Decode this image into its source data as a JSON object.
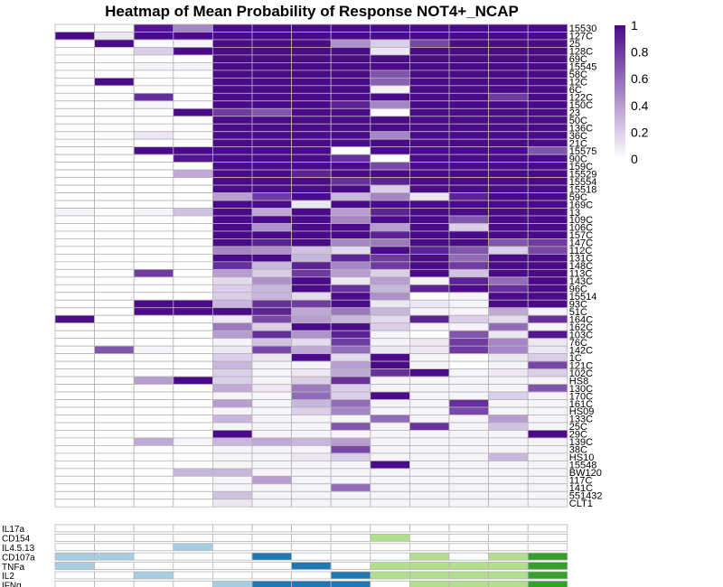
{
  "chart_data": {
    "type": "heatmap",
    "title": "Heatmap of Mean Probability of Response NOT4+_NCAP",
    "xlabel": "",
    "ylabel": "",
    "color_scale": {
      "min": 0,
      "max": 1,
      "low_color": "#ffffff",
      "high_color": "#4b0a8a",
      "ticks": [
        "1",
        "0.8",
        "0.6",
        "0.4",
        "0.2",
        "0"
      ]
    },
    "rows": [
      "15530",
      "127C",
      "25",
      "128C",
      "69C",
      "15545",
      "58C",
      "12C",
      "6C",
      "122C",
      "150C",
      "23",
      "50C",
      "136C",
      "36C",
      "21C",
      "15575",
      "90C",
      "159C",
      "15529",
      "15554",
      "15518",
      "59C",
      "169C",
      "13",
      "109C",
      "106C",
      "157C",
      "147C",
      "112C",
      "131C",
      "148C",
      "113C",
      "143C",
      "96C",
      "15514",
      "93C",
      "51C",
      "164C",
      "162C",
      "103C",
      "76C",
      "142C",
      "1C",
      "121C",
      "102C",
      "HS8",
      "130C",
      "170C",
      "161C",
      "HS09",
      "133C",
      "25C",
      "29C",
      "139C",
      "38C",
      "HS10",
      "15548",
      "BW120",
      "117C",
      "141C",
      "551432",
      "CLT1"
    ],
    "values": [
      [
        0,
        0,
        0.95,
        0.5,
        1,
        1,
        1,
        1,
        1,
        1,
        1,
        1,
        1
      ],
      [
        1,
        0.1,
        1,
        1,
        1,
        1,
        1,
        1,
        1,
        1,
        1,
        1,
        1
      ],
      [
        0,
        1,
        0.02,
        0.05,
        1,
        1,
        1,
        0.45,
        0.2,
        0.75,
        1,
        1,
        1
      ],
      [
        0,
        0,
        0.2,
        1,
        1,
        1,
        1,
        1,
        0.1,
        1,
        1,
        1,
        1
      ],
      [
        0,
        0,
        0,
        0,
        1,
        1,
        1,
        1,
        1,
        1,
        1,
        1,
        1
      ],
      [
        0,
        0,
        0.05,
        0.05,
        1,
        1,
        1,
        1,
        1,
        1,
        1,
        1,
        1
      ],
      [
        0,
        0,
        0,
        0,
        1,
        1,
        1,
        1,
        0.7,
        1,
        1,
        1,
        1
      ],
      [
        0,
        1,
        0,
        0,
        1,
        1,
        1,
        1,
        0.65,
        1,
        1,
        1,
        1
      ],
      [
        0,
        0,
        0,
        0,
        1,
        1,
        1,
        1,
        0.05,
        1,
        1,
        1,
        1
      ],
      [
        0,
        0,
        0.85,
        0,
        1,
        1,
        1,
        1,
        1,
        1,
        1,
        0.8,
        1
      ],
      [
        0,
        0,
        0.05,
        0,
        1,
        1,
        1,
        0.9,
        0.5,
        1,
        1,
        1,
        1
      ],
      [
        0,
        0,
        0,
        1,
        0.8,
        0.7,
        1,
        1,
        0,
        1,
        1,
        1,
        1
      ],
      [
        0,
        0,
        0,
        0,
        1,
        1,
        1,
        1,
        1,
        1,
        1,
        1,
        1
      ],
      [
        0,
        0,
        0,
        0,
        1,
        1,
        1,
        1,
        1,
        1,
        1,
        1,
        1
      ],
      [
        0,
        0,
        0.1,
        0,
        1,
        1,
        1,
        1,
        0.5,
        1,
        1,
        1,
        1
      ],
      [
        0,
        0,
        0,
        0,
        1,
        1,
        1,
        1,
        1,
        1,
        1,
        1,
        1
      ],
      [
        0,
        0,
        1,
        1,
        1,
        1,
        1,
        0,
        1,
        1,
        1,
        1,
        0.7
      ],
      [
        0,
        0,
        0,
        0.95,
        1,
        1,
        1,
        0.85,
        0,
        1,
        1,
        1,
        1
      ],
      [
        0,
        0,
        0,
        0,
        1,
        1,
        1,
        1,
        0.75,
        1,
        1,
        1,
        1
      ],
      [
        0,
        0,
        0,
        0.35,
        1,
        1,
        0.9,
        1,
        1,
        1,
        1,
        1,
        1
      ],
      [
        0,
        0,
        0,
        0,
        1,
        1,
        1,
        0.85,
        0.9,
        1,
        1,
        1,
        1
      ],
      [
        0,
        0,
        0,
        0,
        1,
        1,
        1,
        1,
        0.2,
        1,
        1,
        1,
        1
      ],
      [
        0,
        0,
        0,
        0,
        0.4,
        0.8,
        1,
        0.3,
        0.5,
        0.1,
        0.9,
        1,
        1
      ],
      [
        0,
        0,
        0,
        0,
        1,
        1,
        0.1,
        1,
        1,
        1,
        1,
        1,
        1
      ],
      [
        0.05,
        0,
        0.05,
        0.25,
        1,
        0.35,
        1,
        0.4,
        0.9,
        1,
        1,
        1,
        1
      ],
      [
        0,
        0,
        0,
        0,
        1,
        1,
        1,
        0.5,
        1,
        1,
        0.7,
        1,
        1
      ],
      [
        0,
        0,
        0,
        0,
        1,
        0.45,
        1,
        1,
        0.4,
        1,
        0.2,
        1,
        1
      ],
      [
        0,
        0,
        0,
        0,
        1,
        1,
        1,
        1,
        0.9,
        1,
        1,
        1,
        1
      ],
      [
        0,
        0,
        0,
        0,
        1,
        0.9,
        1,
        0.5,
        0.55,
        1,
        1,
        0.7,
        0.8
      ],
      [
        0,
        0,
        0,
        0,
        0.5,
        0.45,
        0.25,
        0.15,
        1,
        0.9,
        0.7,
        0.2,
        0.75
      ],
      [
        0,
        0,
        0,
        0,
        1,
        1,
        0.3,
        0.9,
        0.8,
        1,
        0.6,
        1,
        1
      ],
      [
        0,
        0,
        0,
        0,
        0.85,
        0.3,
        0.9,
        0.5,
        0.8,
        1,
        0.8,
        1,
        1
      ],
      [
        0,
        0,
        0.8,
        0,
        0.4,
        0.2,
        0.8,
        0.4,
        0.2,
        1,
        0.25,
        1,
        1
      ],
      [
        0,
        0,
        0,
        0,
        0.15,
        0.45,
        1,
        0.1,
        0.4,
        0.05,
        0.9,
        0.6,
        1
      ],
      [
        0,
        0,
        0,
        0,
        0.2,
        0.3,
        1,
        0.85,
        0.3,
        0.9,
        1,
        0.85,
        1
      ],
      [
        0,
        0,
        0,
        0,
        0.2,
        0.3,
        0.15,
        1,
        0.45,
        0,
        0.05,
        1,
        1
      ],
      [
        0,
        0,
        1,
        1,
        0.3,
        0.85,
        0.8,
        1,
        0.1,
        0.1,
        0.05,
        1,
        1
      ],
      [
        0,
        0,
        1,
        1,
        1,
        0.9,
        0.35,
        0.55,
        0.3,
        0.05,
        0.05,
        0.35,
        0.05
      ],
      [
        1,
        0,
        0,
        0,
        0.1,
        0.75,
        0.4,
        0.3,
        0.15,
        0.9,
        0.2,
        0.15,
        0.85
      ],
      [
        0,
        0,
        0,
        0,
        0.55,
        0.2,
        1,
        1,
        0.2,
        0.05,
        0.05,
        0.6,
        0.05
      ],
      [
        0,
        0,
        0,
        0,
        0.4,
        0.85,
        0.45,
        0.9,
        0.05,
        0,
        0.7,
        0.1,
        0.95
      ],
      [
        0,
        0,
        0,
        0,
        0.05,
        0.25,
        0.15,
        0.8,
        0.05,
        0.1,
        0.8,
        0.5,
        0.1
      ],
      [
        0,
        0.7,
        0.05,
        0,
        0.1,
        0.75,
        0.35,
        0.6,
        0.1,
        0.1,
        0.8,
        0.5,
        0.1
      ],
      [
        0,
        0,
        0,
        0,
        0.2,
        0.1,
        1,
        0.15,
        1,
        0.05,
        0,
        0.1,
        0.2
      ],
      [
        0,
        0,
        0,
        0,
        0.3,
        0.05,
        0.05,
        0.4,
        1,
        0.05,
        0,
        0.05,
        0.75
      ],
      [
        0,
        0,
        0,
        0,
        0.2,
        0.05,
        0.1,
        0.35,
        0.85,
        1,
        0.05,
        0.1,
        0.2
      ],
      [
        0,
        0,
        0.4,
        1,
        0.2,
        0.05,
        0.2,
        0.85,
        0.05,
        0.05,
        0.05,
        0.05,
        0.05
      ],
      [
        0,
        0,
        0,
        0,
        0.35,
        0.1,
        0.55,
        0.2,
        0.05,
        0.05,
        0.05,
        0.05,
        0.7
      ],
      [
        0,
        0,
        0,
        0,
        0.05,
        0.05,
        0.6,
        0.2,
        1,
        0.05,
        0.05,
        0.2,
        0.05
      ],
      [
        0,
        0,
        0,
        0,
        0.4,
        0.05,
        0.3,
        0.6,
        0.05,
        0.05,
        0.85,
        0.05,
        0.05
      ],
      [
        0,
        0,
        0,
        0,
        0.05,
        0.05,
        0.2,
        0.5,
        0.05,
        0.05,
        0.75,
        0.05,
        0.05
      ],
      [
        0,
        0,
        0,
        0,
        0.3,
        0.05,
        0.05,
        0.05,
        0.6,
        0.05,
        0.05,
        0.4,
        0.05
      ],
      [
        0,
        0,
        0,
        0,
        0.05,
        0.05,
        0.05,
        0.7,
        0.05,
        0.85,
        0.05,
        0.25,
        0.05
      ],
      [
        0,
        0,
        0,
        0,
        1,
        0.05,
        0.05,
        0.05,
        0.05,
        0.05,
        0.05,
        0.05,
        1
      ],
      [
        0,
        0,
        0.35,
        0.05,
        0.3,
        0.35,
        0.3,
        0.4,
        0.05,
        0.05,
        0.05,
        0.05,
        0.05
      ],
      [
        0,
        0,
        0,
        0,
        0.05,
        0.05,
        0.05,
        0.75,
        0.05,
        0.05,
        0.05,
        0.05,
        0.05
      ],
      [
        0,
        0,
        0,
        0,
        0.05,
        0.05,
        0.1,
        0.2,
        0.05,
        0.05,
        0.05,
        0.3,
        0.05
      ],
      [
        0,
        0,
        0,
        0,
        0.05,
        0.05,
        0.05,
        0.05,
        1,
        0.05,
        0.05,
        0.05,
        0.05
      ],
      [
        0,
        0,
        0,
        0.3,
        0.3,
        0.05,
        0.05,
        0.05,
        0.05,
        0.05,
        0.05,
        0.05,
        0.05
      ],
      [
        0,
        0,
        0,
        0,
        0.05,
        0.4,
        0.05,
        0.05,
        0.05,
        0.05,
        0.05,
        0.05,
        0.05
      ],
      [
        0,
        0,
        0,
        0,
        0.05,
        0.05,
        0.05,
        0.6,
        0.05,
        0.05,
        0.05,
        0.05,
        0.05
      ],
      [
        0,
        0,
        0,
        0,
        0.25,
        0.05,
        0.05,
        0.05,
        0.05,
        0.05,
        0.05,
        0.05,
        0.05
      ],
      [
        0,
        0,
        0,
        0,
        0.1,
        0.05,
        0.05,
        0.05,
        0.05,
        0.05,
        0.05,
        0.05,
        0.05
      ]
    ],
    "annotation": {
      "rows": [
        "IL17a",
        "CD154",
        "IL4.5.13",
        "CD107a",
        "TNFa",
        "IL2",
        "IFNg"
      ],
      "columns": [
        {
          "CD107a": "lightblue",
          "TNFa": "lightblue"
        },
        {
          "CD107a": "lightblue"
        },
        {
          "IL2": "lightblue"
        },
        {
          "IL4.5.13": "lightblue"
        },
        {
          "IFNg": "lightblue"
        },
        {
          "CD107a": "darkblue",
          "IFNg": "darkblue"
        },
        {
          "TNFa": "darkblue",
          "IFNg": "darkblue"
        },
        {
          "IL2": "darkblue",
          "IFNg": "darkblue"
        },
        {
          "CD154": "lightgreen",
          "TNFa": "lightgreen",
          "IL2": "lightgreen"
        },
        {
          "CD107a": "lightgreen",
          "TNFa": "lightgreen",
          "IL2": "lightgreen",
          "IFNg": "lightgreen"
        },
        {
          "TNFa": "lightgreen",
          "IL2": "lightgreen",
          "IFNg": "lightgreen"
        },
        {
          "CD107a": "lightgreen",
          "TNFa": "lightgreen",
          "IL2": "lightgreen",
          "IFNg": "lightgreen"
        },
        {
          "CD107a": "darkgreen",
          "TNFa": "darkgreen",
          "IL2": "darkgreen",
          "IFNg": "darkgreen"
        }
      ]
    }
  },
  "colors": {
    "heat_high": "#4b0a8a",
    "heat_low": "#ffffff",
    "grid": "#b4b4b4",
    "lightblue": "#a6cee3",
    "darkblue": "#1f78b4",
    "lightgreen": "#b2df8a",
    "darkgreen": "#33a02c"
  }
}
